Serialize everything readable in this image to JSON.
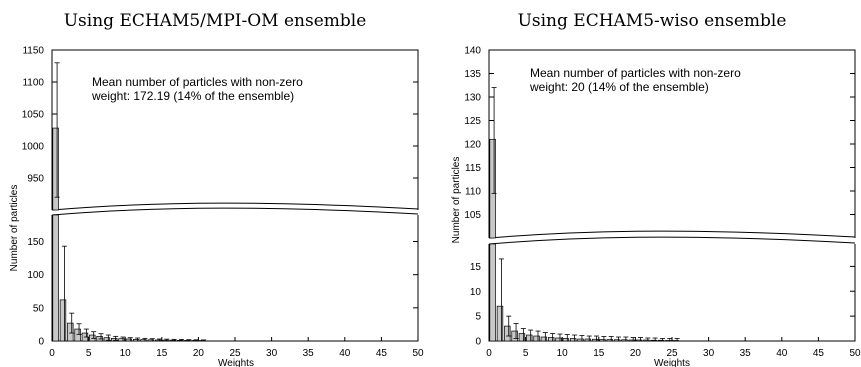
{
  "chart_data": [
    {
      "type": "bar",
      "title": "Using ECHAM5/MPI-OM ensemble",
      "xlabel": "Weights",
      "ylabel": "Number of particles",
      "annotation_line1": "Mean number of particles with non-zero",
      "annotation_line2": "weight: 172.19 (14% of the ensemble)",
      "broken_y_axis": true,
      "xlim": [
        0,
        50
      ],
      "ylim_upper": [
        900,
        1150
      ],
      "ylim_lower": [
        0,
        190
      ],
      "x_ticks": [
        "0",
        "5",
        "10",
        "15",
        "20",
        "25",
        "30",
        "35",
        "40",
        "45",
        "50"
      ],
      "y_ticks_upper": [
        "950",
        "1000",
        "1050",
        "1100",
        "1150"
      ],
      "y_ticks_lower": [
        "0",
        "50",
        "100",
        "150"
      ],
      "x": [
        0,
        1,
        2,
        3,
        4,
        5,
        6,
        7,
        8,
        9,
        10,
        11,
        12,
        13,
        14,
        15,
        16,
        17,
        18,
        19,
        20
      ],
      "values": [
        1028,
        62,
        27,
        18,
        12,
        9,
        7,
        5,
        4,
        3.5,
        3,
        2.5,
        2,
        1.8,
        1.5,
        1.3,
        1.2,
        1.0,
        0.9,
        0.8,
        0.7
      ],
      "error_upper": [
        1130,
        143,
        42,
        26,
        18,
        14,
        11,
        9,
        7,
        6,
        5,
        4.5,
        4,
        3.5,
        3,
        2.8,
        2.5,
        2.3,
        2,
        1.8,
        1.6
      ],
      "error_lower": [
        920,
        0,
        12,
        10,
        6,
        4,
        3,
        1,
        1,
        0,
        0,
        0,
        0,
        0,
        0,
        0,
        0,
        0,
        0,
        0,
        0
      ],
      "grid": false
    },
    {
      "type": "bar",
      "title": "Using ECHAM5-wiso ensemble",
      "xlabel": "Weights",
      "ylabel": "Number of particles",
      "annotation_line1": "Mean number of particles with non-zero",
      "annotation_line2": "weight: 20 (14% of the ensemble)",
      "broken_y_axis": true,
      "xlim": [
        0,
        50
      ],
      "ylim_upper": [
        100,
        140
      ],
      "ylim_lower": [
        0,
        19.5
      ],
      "x_ticks": [
        "0",
        "5",
        "10",
        "15",
        "20",
        "25",
        "30",
        "35",
        "40",
        "45",
        "50"
      ],
      "y_ticks_upper": [
        "105",
        "110",
        "115",
        "120",
        "125",
        "130",
        "135",
        "140"
      ],
      "y_ticks_lower": [
        "0",
        "5",
        "10",
        "15"
      ],
      "x": [
        0,
        1,
        2,
        3,
        4,
        5,
        6,
        7,
        8,
        9,
        10,
        11,
        12,
        13,
        14,
        15,
        16,
        17,
        18,
        19,
        20,
        21,
        22,
        23,
        24,
        25
      ],
      "values": [
        121,
        7,
        3,
        2,
        1.5,
        1.2,
        1.0,
        0.8,
        0.7,
        0.6,
        0.5,
        0.5,
        0.4,
        0.4,
        0.35,
        0.3,
        0.3,
        0.25,
        0.25,
        0.2,
        0.2,
        0.2,
        0.15,
        0.15,
        0.1,
        0.1
      ],
      "error_upper": [
        132,
        16.5,
        5,
        3.5,
        2.5,
        2.2,
        2,
        1.7,
        1.5,
        1.4,
        1.3,
        1.2,
        1.1,
        1,
        1,
        0.9,
        0.9,
        0.8,
        0.8,
        0.7,
        0.7,
        0.6,
        0.6,
        0.5,
        0.5,
        0.5
      ],
      "error_lower": [
        109.5,
        0,
        1,
        0.5,
        0,
        0,
        0,
        0,
        0,
        0,
        0,
        0,
        0,
        0,
        0,
        0,
        0,
        0,
        0,
        0,
        0,
        0,
        0,
        0,
        0,
        0
      ],
      "grid": false
    }
  ]
}
